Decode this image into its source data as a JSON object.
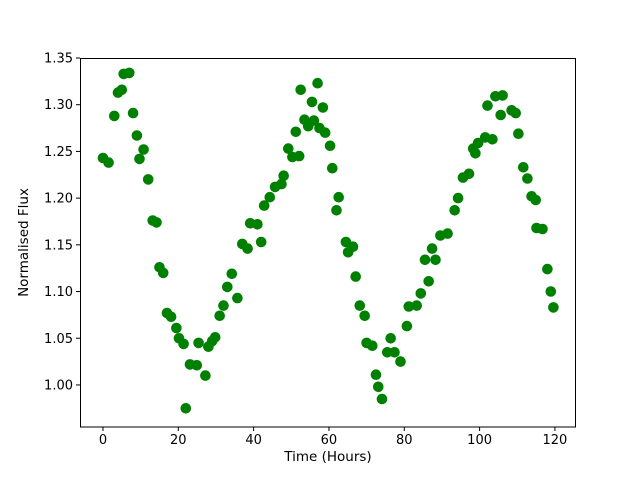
{
  "figure": {
    "background": "#ffffff",
    "frame_color": "#000000"
  },
  "chart_data": {
    "type": "scatter",
    "title": "",
    "xlabel": "Time (Hours)",
    "ylabel": "Normalised Flux",
    "legend": null,
    "grid": false,
    "marker": "circle",
    "marker_color": "#008000",
    "marker_radius_px": 5.3,
    "xlim": [
      -6.1,
      125.6
    ],
    "ylim": [
      0.955,
      1.35
    ],
    "xticks": [
      0,
      20,
      40,
      60,
      80,
      100,
      120
    ],
    "xtick_labels": [
      "0",
      "20",
      "40",
      "60",
      "80",
      "100",
      "120"
    ],
    "yticks": [
      1.0,
      1.05,
      1.1,
      1.15,
      1.2,
      1.25,
      1.3,
      1.35
    ],
    "ytick_labels": [
      "1.00",
      "1.05",
      "1.10",
      "1.15",
      "1.20",
      "1.25",
      "1.30",
      "1.35"
    ],
    "points": [
      [
        0.0,
        1.243
      ],
      [
        1.5,
        1.238
      ],
      [
        3.0,
        1.288
      ],
      [
        4.0,
        1.313
      ],
      [
        5.0,
        1.316
      ],
      [
        5.5,
        1.333
      ],
      [
        7.0,
        1.334
      ],
      [
        8.0,
        1.291
      ],
      [
        9.0,
        1.267
      ],
      [
        9.7,
        1.242
      ],
      [
        10.8,
        1.252
      ],
      [
        12.0,
        1.22
      ],
      [
        13.2,
        1.176
      ],
      [
        14.2,
        1.174
      ],
      [
        15.0,
        1.126
      ],
      [
        16.0,
        1.12
      ],
      [
        17.0,
        1.077
      ],
      [
        18.1,
        1.073
      ],
      [
        19.5,
        1.061
      ],
      [
        20.2,
        1.05
      ],
      [
        21.4,
        1.044
      ],
      [
        22.0,
        0.975
      ],
      [
        23.1,
        1.022
      ],
      [
        24.9,
        1.021
      ],
      [
        25.4,
        1.045
      ],
      [
        27.2,
        1.01
      ],
      [
        28.0,
        1.041
      ],
      [
        29.0,
        1.047
      ],
      [
        29.8,
        1.051
      ],
      [
        31.0,
        1.074
      ],
      [
        32.0,
        1.085
      ],
      [
        33.0,
        1.105
      ],
      [
        34.2,
        1.119
      ],
      [
        35.7,
        1.093
      ],
      [
        37.0,
        1.151
      ],
      [
        38.4,
        1.146
      ],
      [
        39.1,
        1.173
      ],
      [
        41.0,
        1.172
      ],
      [
        42.0,
        1.153
      ],
      [
        42.8,
        1.192
      ],
      [
        44.3,
        1.201
      ],
      [
        45.7,
        1.212
      ],
      [
        47.4,
        1.215
      ],
      [
        48.0,
        1.224
      ],
      [
        49.2,
        1.253
      ],
      [
        50.3,
        1.244
      ],
      [
        51.2,
        1.271
      ],
      [
        52.1,
        1.245
      ],
      [
        52.5,
        1.316
      ],
      [
        53.5,
        1.284
      ],
      [
        54.5,
        1.277
      ],
      [
        55.5,
        1.303
      ],
      [
        56.0,
        1.283
      ],
      [
        57.0,
        1.323
      ],
      [
        57.5,
        1.275
      ],
      [
        58.4,
        1.297
      ],
      [
        59.0,
        1.27
      ],
      [
        60.3,
        1.256
      ],
      [
        60.9,
        1.232
      ],
      [
        62.0,
        1.187
      ],
      [
        62.6,
        1.201
      ],
      [
        64.5,
        1.153
      ],
      [
        65.1,
        1.142
      ],
      [
        66.4,
        1.148
      ],
      [
        67.1,
        1.116
      ],
      [
        68.2,
        1.085
      ],
      [
        69.5,
        1.074
      ],
      [
        70.0,
        1.045
      ],
      [
        71.5,
        1.042
      ],
      [
        72.5,
        1.011
      ],
      [
        73.1,
        0.998
      ],
      [
        74.1,
        0.985
      ],
      [
        75.5,
        1.035
      ],
      [
        76.4,
        1.05
      ],
      [
        77.4,
        1.035
      ],
      [
        79.0,
        1.025
      ],
      [
        80.7,
        1.063
      ],
      [
        81.2,
        1.084
      ],
      [
        83.3,
        1.085
      ],
      [
        84.4,
        1.098
      ],
      [
        85.5,
        1.134
      ],
      [
        86.5,
        1.111
      ],
      [
        87.4,
        1.146
      ],
      [
        88.3,
        1.134
      ],
      [
        89.6,
        1.16
      ],
      [
        91.5,
        1.162
      ],
      [
        93.4,
        1.187
      ],
      [
        94.3,
        1.2
      ],
      [
        95.6,
        1.222
      ],
      [
        97.2,
        1.226
      ],
      [
        98.3,
        1.253
      ],
      [
        98.9,
        1.248
      ],
      [
        99.6,
        1.259
      ],
      [
        101.5,
        1.265
      ],
      [
        103.4,
        1.263
      ],
      [
        102.1,
        1.299
      ],
      [
        104.2,
        1.309
      ],
      [
        106.1,
        1.31
      ],
      [
        105.6,
        1.289
      ],
      [
        108.5,
        1.294
      ],
      [
        109.6,
        1.291
      ],
      [
        110.3,
        1.269
      ],
      [
        111.6,
        1.233
      ],
      [
        112.7,
        1.221
      ],
      [
        113.8,
        1.202
      ],
      [
        114.9,
        1.198
      ],
      [
        115.1,
        1.168
      ],
      [
        116.7,
        1.167
      ],
      [
        118.0,
        1.124
      ],
      [
        118.9,
        1.1
      ],
      [
        119.6,
        1.083
      ]
    ]
  }
}
